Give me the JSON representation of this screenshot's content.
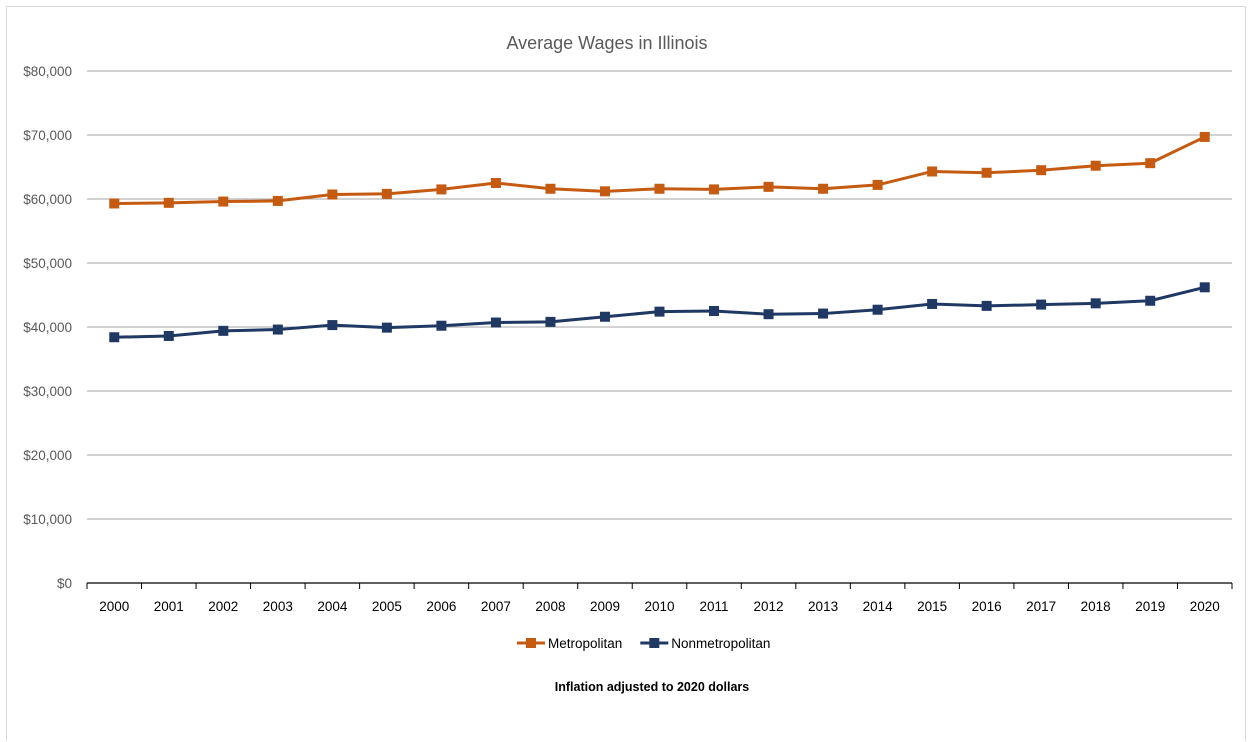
{
  "chart_data": {
    "type": "line",
    "title": "Average Wages in Illinois",
    "subtitle": "Inflation adjusted to 2020 dollars",
    "xlabel": "",
    "ylabel": "",
    "categories": [
      "2000",
      "2001",
      "2002",
      "2003",
      "2004",
      "2005",
      "2006",
      "2007",
      "2008",
      "2009",
      "2010",
      "2011",
      "2012",
      "2013",
      "2014",
      "2015",
      "2016",
      "2017",
      "2018",
      "2019",
      "2020"
    ],
    "ylim": [
      0,
      80000
    ],
    "yticks": [
      0,
      10000,
      20000,
      30000,
      40000,
      50000,
      60000,
      70000,
      80000
    ],
    "ytick_labels": [
      "$0",
      "$10,000",
      "$20,000",
      "$30,000",
      "$40,000",
      "$50,000",
      "$60,000",
      "$70,000",
      "$80,000"
    ],
    "grid": true,
    "legend_position": "bottom",
    "series": [
      {
        "name": "Metropolitan",
        "color": "#c55a11",
        "marker": "square",
        "values": [
          59300,
          59400,
          59600,
          59700,
          60700,
          60800,
          61500,
          62500,
          61600,
          61200,
          61600,
          61500,
          61900,
          61600,
          62200,
          64300,
          64100,
          64500,
          65200,
          65600,
          69700
        ]
      },
      {
        "name": "Nonmetropolitan",
        "color": "#203864",
        "marker": "square",
        "values": [
          38400,
          38600,
          39400,
          39600,
          40300,
          39900,
          40200,
          40700,
          40800,
          41600,
          42400,
          42500,
          42000,
          42100,
          42700,
          43600,
          43300,
          43500,
          43700,
          44100,
          46200
        ]
      }
    ]
  }
}
